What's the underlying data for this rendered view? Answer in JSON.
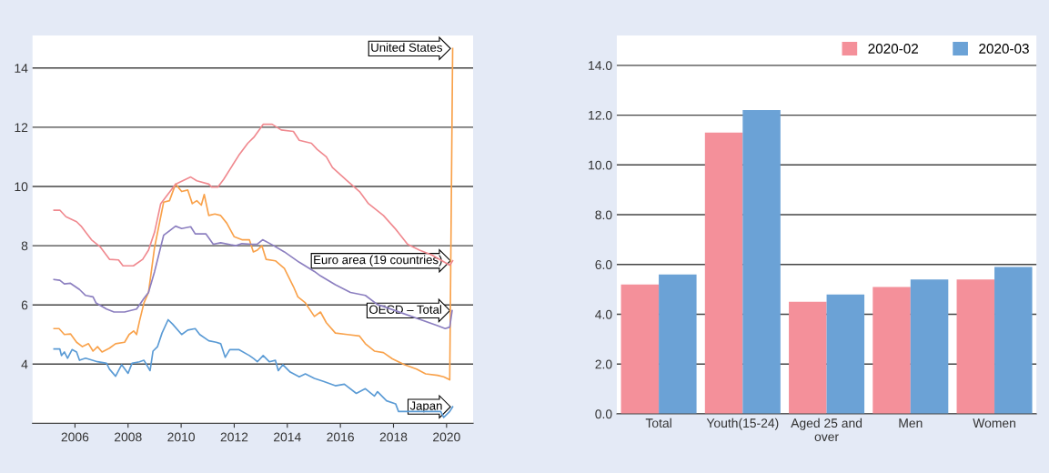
{
  "chart_data": [
    {
      "type": "line",
      "xlim": [
        2004.4,
        2021.0
      ],
      "xticks": [
        2006,
        2008,
        2010,
        2012,
        2014,
        2016,
        2018,
        2020
      ],
      "ylim": [
        2.0,
        15.1
      ],
      "yticks": [
        4,
        6,
        8,
        10,
        12,
        14
      ],
      "grid": "y",
      "legend": false,
      "marker": "none",
      "line_style": "solid",
      "series": [
        {
          "name": "United States",
          "color": "#f9a24b",
          "x": [
            2005.21,
            2005.4,
            2005.6,
            2005.83,
            2006.06,
            2006.28,
            2006.51,
            2006.68,
            2006.85,
            2007.02,
            2007.3,
            2007.53,
            2007.87,
            2008.04,
            2008.21,
            2008.32,
            2008.43,
            2008.6,
            2008.77,
            2009.0,
            2009.34,
            2009.56,
            2009.79,
            2010.02,
            2010.25,
            2010.42,
            2010.59,
            2010.76,
            2010.87,
            2011.04,
            2011.27,
            2011.49,
            2011.72,
            2012.0,
            2012.29,
            2012.57,
            2012.72,
            2012.87,
            2013.04,
            2013.2,
            2013.55,
            2013.89,
            2014.23,
            2014.4,
            2014.68,
            2015.02,
            2015.25,
            2015.47,
            2015.81,
            2016.26,
            2016.72,
            2016.94,
            2017.28,
            2017.62,
            2017.96,
            2018.42,
            2018.87,
            2019.21,
            2019.66,
            2019.89,
            2020.12,
            2020.23
          ],
          "values": [
            5.2,
            5.2,
            5.0,
            5.02,
            4.74,
            4.59,
            4.69,
            4.44,
            4.59,
            4.41,
            4.54,
            4.69,
            4.74,
            5.0,
            5.12,
            5.0,
            5.45,
            6.07,
            6.42,
            7.95,
            9.47,
            9.52,
            10.08,
            9.83,
            9.88,
            9.42,
            9.52,
            9.37,
            9.73,
            9.02,
            9.07,
            9.02,
            8.76,
            8.3,
            8.2,
            8.2,
            7.79,
            7.85,
            8.0,
            7.54,
            7.49,
            7.23,
            6.62,
            6.27,
            6.07,
            5.61,
            5.76,
            5.4,
            5.05,
            5.0,
            4.95,
            4.69,
            4.44,
            4.39,
            4.18,
            3.98,
            3.83,
            3.67,
            3.62,
            3.57,
            3.47,
            14.66
          ]
        },
        {
          "name": "Euro area (19 countries)",
          "color": "#f08a90",
          "x": [
            2005.21,
            2005.43,
            2005.66,
            2006.06,
            2006.23,
            2006.62,
            2006.96,
            2007.3,
            2007.64,
            2007.81,
            2008.2,
            2008.55,
            2008.77,
            2009.0,
            2009.23,
            2009.79,
            2010.36,
            2010.59,
            2011.04,
            2011.15,
            2011.38,
            2011.6,
            2012.17,
            2012.51,
            2012.74,
            2013.09,
            2013.43,
            2013.77,
            2014.23,
            2014.45,
            2014.91,
            2015.13,
            2015.47,
            2015.7,
            2016.26,
            2016.72,
            2017.06,
            2017.62,
            2018.08,
            2018.53,
            2018.98,
            2019.44,
            2020.12,
            2020.23
          ],
          "values": [
            9.2,
            9.2,
            8.98,
            8.81,
            8.66,
            8.2,
            7.95,
            7.54,
            7.52,
            7.32,
            7.32,
            7.54,
            7.85,
            8.46,
            9.42,
            10.08,
            10.32,
            10.19,
            10.08,
            9.98,
            9.98,
            10.24,
            11.05,
            11.46,
            11.66,
            12.1,
            12.1,
            11.91,
            11.86,
            11.56,
            11.46,
            11.25,
            11.0,
            10.64,
            10.19,
            9.83,
            9.42,
            9.02,
            8.56,
            8.05,
            7.85,
            7.69,
            7.34,
            7.49
          ]
        },
        {
          "name": "OECD – Total",
          "color": "#8c7fc0",
          "x": [
            2005.21,
            2005.43,
            2005.6,
            2005.83,
            2006.17,
            2006.4,
            2006.68,
            2006.79,
            2007.19,
            2007.47,
            2007.87,
            2008.32,
            2008.6,
            2008.77,
            2009.0,
            2009.34,
            2009.79,
            2010.02,
            2010.36,
            2010.53,
            2010.93,
            2011.21,
            2011.49,
            2012.06,
            2012.29,
            2012.64,
            2012.87,
            2013.07,
            2013.43,
            2013.89,
            2014.45,
            2015.02,
            2015.25,
            2015.81,
            2016.38,
            2016.94,
            2017.4,
            2017.74,
            2019.66,
            2019.95,
            2020.12,
            2020.21
          ],
          "values": [
            6.86,
            6.83,
            6.71,
            6.73,
            6.52,
            6.32,
            6.27,
            6.07,
            5.86,
            5.76,
            5.76,
            5.86,
            6.22,
            6.42,
            7.13,
            8.35,
            8.66,
            8.58,
            8.64,
            8.4,
            8.4,
            8.05,
            8.1,
            8.0,
            8.07,
            8.05,
            8.05,
            8.2,
            8.03,
            7.79,
            7.44,
            7.13,
            6.98,
            6.68,
            6.42,
            6.32,
            6.01,
            5.91,
            5.3,
            5.2,
            5.25,
            5.81
          ]
        },
        {
          "name": "Japan",
          "color": "#5b9bd5",
          "x": [
            2005.21,
            2005.43,
            2005.49,
            2005.6,
            2005.72,
            2005.89,
            2006.06,
            2006.17,
            2006.4,
            2006.85,
            2007.19,
            2007.3,
            2007.53,
            2007.76,
            2008.0,
            2008.15,
            2008.43,
            2008.6,
            2008.83,
            2008.94,
            2009.11,
            2009.28,
            2009.51,
            2009.68,
            2010.02,
            2010.25,
            2010.53,
            2010.7,
            2011.04,
            2011.32,
            2011.49,
            2011.66,
            2011.83,
            2012.17,
            2012.57,
            2012.74,
            2012.87,
            2013.09,
            2013.32,
            2013.55,
            2013.66,
            2013.83,
            2014.11,
            2014.45,
            2014.68,
            2015.02,
            2015.36,
            2015.81,
            2016.15,
            2016.6,
            2016.94,
            2017.28,
            2017.4,
            2017.74,
            2018.08,
            2018.19,
            2019.78,
            2019.89,
            2020.12,
            2020.23
          ],
          "values": [
            4.51,
            4.51,
            4.29,
            4.41,
            4.2,
            4.49,
            4.41,
            4.13,
            4.2,
            4.08,
            4.03,
            3.83,
            3.59,
            3.98,
            3.69,
            4.03,
            4.08,
            4.13,
            3.78,
            4.44,
            4.59,
            5.05,
            5.5,
            5.35,
            5.0,
            5.15,
            5.2,
            5.0,
            4.79,
            4.74,
            4.69,
            4.23,
            4.49,
            4.49,
            4.29,
            4.18,
            4.08,
            4.29,
            4.08,
            4.13,
            3.78,
            3.98,
            3.73,
            3.57,
            3.67,
            3.52,
            3.42,
            3.27,
            3.32,
            3.01,
            3.17,
            2.92,
            3.07,
            2.76,
            2.66,
            2.4,
            2.4,
            2.2,
            2.4,
            2.56
          ]
        }
      ]
    },
    {
      "type": "bar",
      "categories": [
        "Total",
        "Youth(15-24)",
        "Aged 25 and\nover",
        "Men",
        "Women"
      ],
      "ylim": [
        0,
        15.2
      ],
      "yticks": [
        {
          "value": 0,
          "label": "0.0"
        },
        {
          "value": 2,
          "label": "2.0"
        },
        {
          "value": 4,
          "label": "4.0"
        },
        {
          "value": 6,
          "label": "6.0"
        },
        {
          "value": 8,
          "label": "8.0"
        },
        {
          "value": 10,
          "label": "10.0"
        },
        {
          "value": 12,
          "label": "12.0"
        },
        {
          "value": 14,
          "label": "14.0"
        }
      ],
      "grid": "y",
      "legend": "top right",
      "series": [
        {
          "name": "2020-02",
          "color": "#f4909a",
          "values": [
            5.2,
            11.3,
            4.5,
            5.1,
            5.4
          ]
        },
        {
          "name": "2020-03",
          "color": "#6ba2d6",
          "values": [
            5.6,
            12.2,
            4.8,
            5.4,
            5.9
          ]
        }
      ]
    }
  ]
}
